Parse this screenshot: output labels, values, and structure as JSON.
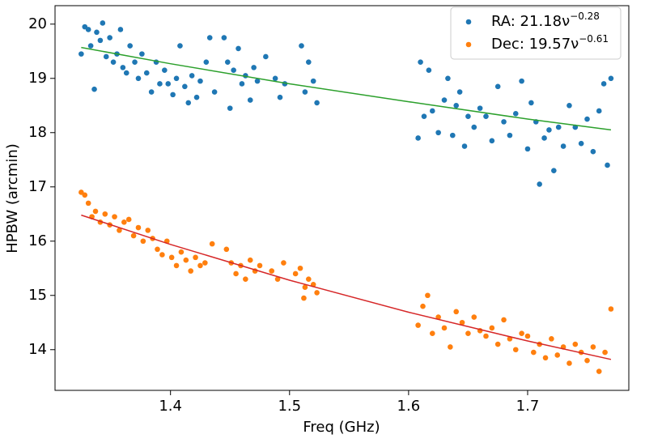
{
  "chart_data": {
    "type": "scatter",
    "xlabel": "Freq (GHz)",
    "ylabel": "HPBW (arcmin)",
    "xlim": [
      1.303,
      1.785
    ],
    "ylim": [
      13.25,
      20.34
    ],
    "xticks": [
      1.4,
      1.5,
      1.6,
      1.7
    ],
    "yticks": [
      14,
      15,
      16,
      17,
      18,
      19,
      20
    ],
    "legend": "upper right",
    "series": [
      {
        "name": "RA: 21.18ν",
        "name_exponent": "−0.28",
        "color": "#1f77b4",
        "x": [
          1.325,
          1.328,
          1.331,
          1.333,
          1.336,
          1.338,
          1.341,
          1.343,
          1.346,
          1.349,
          1.352,
          1.355,
          1.358,
          1.36,
          1.363,
          1.366,
          1.37,
          1.373,
          1.376,
          1.38,
          1.384,
          1.388,
          1.391,
          1.395,
          1.398,
          1.402,
          1.405,
          1.408,
          1.412,
          1.415,
          1.418,
          1.422,
          1.425,
          1.43,
          1.433,
          1.437,
          1.445,
          1.448,
          1.45,
          1.453,
          1.457,
          1.46,
          1.463,
          1.467,
          1.47,
          1.473,
          1.48,
          1.488,
          1.492,
          1.496,
          1.51,
          1.513,
          1.516,
          1.52,
          1.523,
          1.608,
          1.61,
          1.613,
          1.617,
          1.62,
          1.625,
          1.63,
          1.633,
          1.637,
          1.64,
          1.643,
          1.647,
          1.65,
          1.655,
          1.66,
          1.665,
          1.67,
          1.675,
          1.68,
          1.685,
          1.69,
          1.695,
          1.7,
          1.703,
          1.707,
          1.71,
          1.714,
          1.718,
          1.722,
          1.726,
          1.73,
          1.735,
          1.74,
          1.745,
          1.75,
          1.755,
          1.76,
          1.764,
          1.767,
          1.77
        ],
        "values": [
          19.45,
          19.95,
          19.9,
          19.6,
          18.8,
          19.85,
          19.7,
          20.02,
          19.4,
          19.75,
          19.3,
          19.45,
          19.9,
          19.2,
          19.1,
          19.6,
          19.3,
          19.0,
          19.45,
          19.1,
          18.75,
          19.3,
          18.9,
          19.15,
          18.9,
          18.7,
          19.0,
          19.6,
          18.85,
          18.55,
          19.05,
          18.65,
          18.95,
          19.3,
          19.75,
          18.75,
          19.75,
          19.3,
          18.45,
          19.15,
          19.55,
          18.9,
          19.05,
          18.6,
          19.2,
          18.95,
          19.4,
          19.0,
          18.65,
          18.9,
          19.6,
          18.75,
          19.3,
          18.95,
          18.55,
          17.9,
          19.3,
          18.3,
          19.15,
          18.4,
          18.0,
          18.6,
          19.0,
          17.95,
          18.5,
          18.75,
          17.75,
          18.3,
          18.1,
          18.45,
          18.3,
          17.85,
          18.85,
          18.2,
          17.95,
          18.35,
          18.95,
          17.7,
          18.55,
          18.2,
          17.05,
          17.9,
          18.05,
          17.3,
          18.1,
          17.75,
          18.5,
          18.1,
          17.8,
          18.25,
          17.65,
          18.4,
          18.9,
          17.4,
          19.0
        ]
      },
      {
        "name": "Dec: 19.57ν",
        "name_exponent": "−0.61",
        "color": "#ff7f0e",
        "x": [
          1.325,
          1.328,
          1.331,
          1.334,
          1.337,
          1.341,
          1.345,
          1.349,
          1.353,
          1.357,
          1.361,
          1.365,
          1.369,
          1.373,
          1.377,
          1.381,
          1.385,
          1.389,
          1.393,
          1.397,
          1.401,
          1.405,
          1.409,
          1.413,
          1.417,
          1.421,
          1.425,
          1.429,
          1.435,
          1.447,
          1.451,
          1.455,
          1.459,
          1.463,
          1.467,
          1.471,
          1.475,
          1.485,
          1.49,
          1.495,
          1.505,
          1.509,
          1.513,
          1.516,
          1.52,
          1.523,
          1.512,
          1.608,
          1.612,
          1.616,
          1.62,
          1.625,
          1.63,
          1.635,
          1.64,
          1.645,
          1.65,
          1.655,
          1.66,
          1.665,
          1.67,
          1.675,
          1.68,
          1.685,
          1.69,
          1.695,
          1.7,
          1.705,
          1.71,
          1.715,
          1.72,
          1.725,
          1.73,
          1.735,
          1.74,
          1.745,
          1.75,
          1.755,
          1.76,
          1.765,
          1.77
        ],
        "values": [
          16.9,
          16.85,
          16.7,
          16.45,
          16.55,
          16.35,
          16.5,
          16.3,
          16.45,
          16.2,
          16.35,
          16.4,
          16.1,
          16.25,
          16.0,
          16.2,
          16.05,
          15.85,
          15.75,
          16.0,
          15.7,
          15.55,
          15.8,
          15.65,
          15.45,
          15.7,
          15.55,
          15.6,
          15.95,
          15.85,
          15.6,
          15.4,
          15.55,
          15.3,
          15.65,
          15.45,
          15.55,
          15.45,
          15.3,
          15.6,
          15.4,
          15.5,
          15.15,
          15.3,
          15.2,
          15.05,
          14.95,
          14.45,
          14.8,
          15.0,
          14.3,
          14.6,
          14.4,
          14.05,
          14.7,
          14.5,
          14.3,
          14.6,
          14.35,
          14.25,
          14.4,
          14.1,
          14.55,
          14.2,
          14.0,
          14.3,
          14.25,
          13.95,
          14.1,
          13.85,
          14.2,
          13.9,
          14.05,
          13.75,
          14.1,
          13.95,
          13.8,
          14.05,
          13.6,
          13.95,
          14.75
        ]
      }
    ],
    "fits": [
      {
        "color": "#2ca02c",
        "x": [
          1.325,
          1.4,
          1.5,
          1.6,
          1.7,
          1.77
        ],
        "values": [
          19.57,
          19.27,
          18.9,
          18.57,
          18.25,
          18.05
        ]
      },
      {
        "color": "#d62728",
        "x": [
          1.325,
          1.4,
          1.5,
          1.6,
          1.7,
          1.77
        ],
        "values": [
          16.48,
          15.94,
          15.28,
          14.69,
          14.16,
          13.82
        ]
      }
    ]
  }
}
